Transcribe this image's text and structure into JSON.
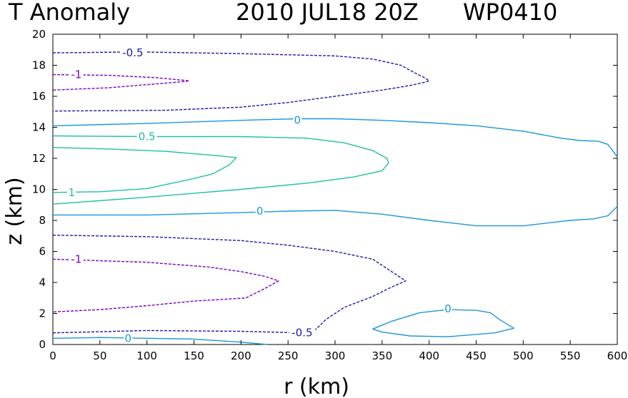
{
  "chart_data": {
    "type": "contour",
    "title_left": "T Anomaly",
    "title_mid": "2010 JUL18 20Z",
    "title_right": "WP0410",
    "xlabel": "r (km)",
    "ylabel": "z (km)",
    "xlim": [
      0,
      600
    ],
    "ylim": [
      0,
      20
    ],
    "xticks": [
      0,
      50,
      100,
      150,
      200,
      250,
      300,
      350,
      400,
      450,
      500,
      550,
      600
    ],
    "yticks": [
      0,
      2,
      4,
      6,
      8,
      10,
      12,
      14,
      16,
      18,
      20
    ],
    "grid": false,
    "contours": [
      {
        "level": "-0.5",
        "color": "#1a1ab0",
        "dashed": true,
        "label_text": "-0.5",
        "label_at": [
          85,
          18.8
        ],
        "points": [
          [
            0,
            18.8
          ],
          [
            75,
            18.85
          ],
          [
            100,
            18.85
          ],
          [
            200,
            18.75
          ],
          [
            300,
            18.6
          ],
          [
            340,
            18.4
          ],
          [
            370,
            18.0
          ],
          [
            385,
            17.5
          ],
          [
            395,
            17.2
          ],
          [
            400,
            17.0
          ],
          [
            395,
            16.9
          ],
          [
            380,
            16.7
          ],
          [
            350,
            16.4
          ],
          [
            300,
            16.0
          ],
          [
            250,
            15.6
          ],
          [
            200,
            15.3
          ],
          [
            120,
            15.1
          ],
          [
            0,
            15.05
          ]
        ]
      },
      {
        "level": "-1",
        "color": "#7a00c8",
        "dashed": true,
        "label_text": "-1",
        "label_at": [
          25,
          17.4
        ],
        "points": [
          [
            0,
            17.4
          ],
          [
            60,
            17.35
          ],
          [
            110,
            17.2
          ],
          [
            145,
            17.0
          ],
          [
            140,
            16.95
          ],
          [
            110,
            16.8
          ],
          [
            60,
            16.55
          ],
          [
            0,
            16.4
          ]
        ]
      },
      {
        "level": "0",
        "color": "#1a96d8",
        "dashed": false,
        "label_text": "0",
        "label_at": [
          260,
          14.45
        ],
        "points": [
          [
            0,
            14.1
          ],
          [
            100,
            14.25
          ],
          [
            200,
            14.45
          ],
          [
            260,
            14.55
          ],
          [
            300,
            14.55
          ],
          [
            350,
            14.45
          ],
          [
            400,
            14.3
          ],
          [
            450,
            14.1
          ],
          [
            500,
            13.75
          ],
          [
            540,
            13.3
          ],
          [
            560,
            13.15
          ],
          [
            580,
            13.1
          ],
          [
            590,
            12.9
          ],
          [
            600,
            12.1
          ]
        ]
      },
      {
        "level": "0.5",
        "color": "#1ec0a6",
        "dashed": false,
        "label_text": "0.5",
        "label_at": [
          100,
          13.4
        ],
        "points": [
          [
            0,
            13.45
          ],
          [
            100,
            13.4
          ],
          [
            200,
            13.4
          ],
          [
            270,
            13.3
          ],
          [
            310,
            13.0
          ],
          [
            340,
            12.5
          ],
          [
            355,
            12.0
          ],
          [
            357,
            11.7
          ],
          [
            350,
            11.2
          ],
          [
            320,
            10.8
          ],
          [
            270,
            10.4
          ],
          [
            200,
            10.0
          ],
          [
            100,
            9.5
          ],
          [
            0,
            9.05
          ]
        ]
      },
      {
        "level": "1",
        "color": "#1ec0a6",
        "dashed": false,
        "label_text": "1",
        "label_at": [
          20,
          9.8
        ],
        "points": [
          [
            0,
            12.7
          ],
          [
            60,
            12.6
          ],
          [
            120,
            12.45
          ],
          [
            170,
            12.2
          ],
          [
            195,
            12.05
          ],
          [
            188,
            11.6
          ],
          [
            170,
            11.0
          ],
          [
            150,
            10.7
          ],
          [
            100,
            10.05
          ],
          [
            50,
            9.85
          ],
          [
            0,
            9.8
          ]
        ]
      },
      {
        "level": "0",
        "color": "#1a96d8",
        "dashed": false,
        "label_text": "0",
        "label_at": [
          220,
          8.6
        ],
        "points": [
          [
            0,
            8.35
          ],
          [
            100,
            8.35
          ],
          [
            200,
            8.5
          ],
          [
            250,
            8.6
          ],
          [
            300,
            8.65
          ],
          [
            350,
            8.4
          ],
          [
            400,
            8.0
          ],
          [
            450,
            7.65
          ],
          [
            500,
            7.65
          ],
          [
            550,
            8.0
          ],
          [
            575,
            8.1
          ],
          [
            590,
            8.3
          ],
          [
            600,
            8.9
          ]
        ]
      },
      {
        "level": "-0.5",
        "color": "#1a1ab0",
        "dashed": true,
        "label_text": "-0.5",
        "label_at": [
          265,
          0.75
        ],
        "points": [
          [
            0,
            7.05
          ],
          [
            100,
            6.95
          ],
          [
            200,
            6.7
          ],
          [
            250,
            6.4
          ],
          [
            300,
            6.0
          ],
          [
            340,
            5.5
          ],
          [
            355,
            4.9
          ],
          [
            375,
            4.1
          ],
          [
            360,
            3.7
          ],
          [
            340,
            3.1
          ],
          [
            310,
            2.4
          ],
          [
            290,
            1.6
          ],
          [
            280,
            1.0
          ],
          [
            265,
            0.75
          ],
          [
            200,
            0.85
          ],
          [
            100,
            0.9
          ],
          [
            0,
            0.75
          ]
        ]
      },
      {
        "level": "-1",
        "color": "#7a00c8",
        "dashed": true,
        "label_text": "-1",
        "label_at": [
          25,
          5.5
        ],
        "points": [
          [
            0,
            5.5
          ],
          [
            100,
            5.3
          ],
          [
            165,
            5.0
          ],
          [
            200,
            4.7
          ],
          [
            225,
            4.4
          ],
          [
            240,
            4.1
          ],
          [
            225,
            3.6
          ],
          [
            205,
            3.0
          ],
          [
            150,
            2.8
          ],
          [
            100,
            2.5
          ],
          [
            50,
            2.25
          ],
          [
            0,
            2.1
          ]
        ]
      },
      {
        "level": "0",
        "color": "#1a96d8",
        "dashed": false,
        "label_text": "0",
        "label_at": [
          80,
          0.4
        ],
        "points": [
          [
            0,
            0.4
          ],
          [
            50,
            0.45
          ],
          [
            100,
            0.4
          ],
          [
            150,
            0.35
          ],
          [
            200,
            0.15
          ],
          [
            228,
            0
          ]
        ]
      },
      {
        "level": "0",
        "color": "#1a96d8",
        "dashed": false,
        "label_text": "0",
        "label_at": [
          420,
          2.3
        ],
        "closed": true,
        "points": [
          [
            340,
            1.0
          ],
          [
            360,
            1.5
          ],
          [
            390,
            2.05
          ],
          [
            420,
            2.25
          ],
          [
            450,
            2.2
          ],
          [
            465,
            2.05
          ],
          [
            475,
            1.6
          ],
          [
            490,
            1.05
          ],
          [
            470,
            0.75
          ],
          [
            420,
            0.5
          ],
          [
            380,
            0.55
          ],
          [
            350,
            0.8
          ]
        ]
      }
    ]
  }
}
